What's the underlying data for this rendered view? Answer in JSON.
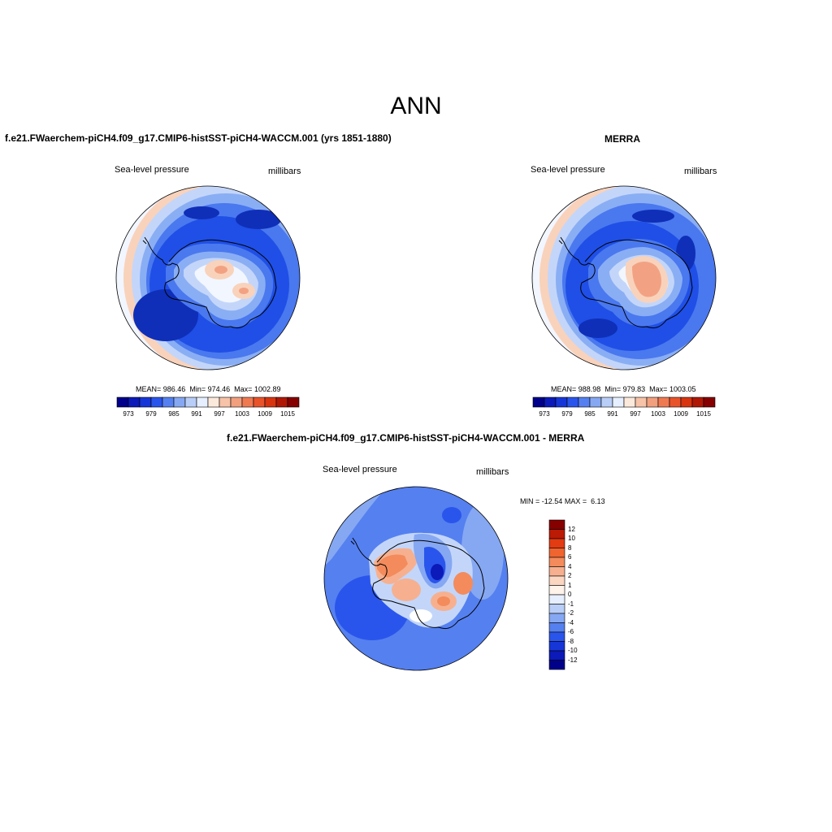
{
  "title": "ANN",
  "panels": [
    {
      "id": "model",
      "title": "f.e21.FWaerchem-piCH4.f09_g17.CMIP6-histSST-piCH4-WACCM.001 (yrs 1851-1880)",
      "variable": "Sea-level pressure",
      "units": "millibars",
      "stats": {
        "mean_label": "MEAN=",
        "mean": "986.46",
        "min_label": "Min=",
        "min": "974.46",
        "max_label": "Max=",
        "max": "1002.89"
      }
    },
    {
      "id": "obs",
      "title": "MERRA",
      "variable": "Sea-level pressure",
      "units": "millibars",
      "stats": {
        "mean_label": "MEAN=",
        "mean": "988.98",
        "min_label": "Min=",
        "min": "979.83",
        "max_label": "Max=",
        "max": "1003.05"
      }
    },
    {
      "id": "diff",
      "title": "f.e21.FWaerchem-piCH4.f09_g17.CMIP6-histSST-piCH4-WACCM.001 - MERRA",
      "variable": "Sea-level pressure",
      "units": "millibars",
      "stats": {
        "min_label": "MIN =",
        "min": "-12.54",
        "max_label": "MAX =",
        "max": "6.13"
      }
    }
  ],
  "colorbar_abs": {
    "ticks": [
      "973",
      "979",
      "985",
      "991",
      "997",
      "1003",
      "1009",
      "1015"
    ],
    "colors": [
      "#00008b",
      "#0b1ab8",
      "#1736d8",
      "#2a55ec",
      "#5580f0",
      "#86a8f2",
      "#b9cef7",
      "#e6efff",
      "#fbe9dc",
      "#f6c2a8",
      "#f29f7e",
      "#ef7a52",
      "#e9532a",
      "#d8340f",
      "#b01805",
      "#860000"
    ]
  },
  "colorbar_diff": {
    "ticks": [
      "12",
      "10",
      "8",
      "6",
      "4",
      "2",
      "1",
      "0",
      "-1",
      "-2",
      "-4",
      "-6",
      "-8",
      "-10",
      "-12"
    ],
    "colors": [
      "#860000",
      "#bb1a05",
      "#e33b12",
      "#f0642f",
      "#f38b5c",
      "#f6b08f",
      "#fbd6c1",
      "#fff3ea",
      "#e6efff",
      "#b9cef7",
      "#86a8f2",
      "#5580f0",
      "#2a55ec",
      "#1736d8",
      "#0b1ab8",
      "#00008b"
    ]
  },
  "map_colors": {
    "deep_blue": "#0f2fb8",
    "blue": "#1f4fe6",
    "mid_blue": "#4a78ef",
    "light_blue": "#8aaef4",
    "pale_blue": "#c3d6fa",
    "white": "#f2f6ff",
    "pale_orange": "#f9d2bb",
    "orange": "#f2a283",
    "red_orange": "#ea6a3d"
  }
}
